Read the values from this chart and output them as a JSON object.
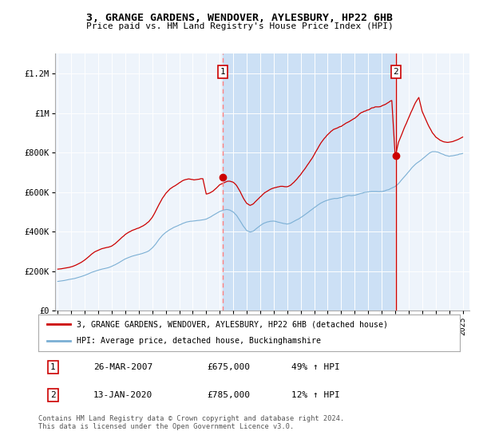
{
  "title": "3, GRANGE GARDENS, WENDOVER, AYLESBURY, HP22 6HB",
  "subtitle": "Price paid vs. HM Land Registry's House Price Index (HPI)",
  "ylim": [
    0,
    1300000
  ],
  "yticks": [
    0,
    200000,
    400000,
    600000,
    800000,
    1000000,
    1200000
  ],
  "ytick_labels": [
    "£0",
    "£200K",
    "£400K",
    "£600K",
    "£800K",
    "£1M",
    "£1.2M"
  ],
  "xlim_start": 1994.8,
  "xlim_end": 2025.5,
  "xtick_years": [
    1995,
    1996,
    1997,
    1998,
    1999,
    2000,
    2001,
    2002,
    2003,
    2004,
    2005,
    2006,
    2007,
    2008,
    2009,
    2010,
    2011,
    2012,
    2013,
    2014,
    2015,
    2016,
    2017,
    2018,
    2019,
    2020,
    2021,
    2022,
    2023,
    2024,
    2025
  ],
  "hpi_color": "#7bafd4",
  "price_color": "#cc0000",
  "dashed_color": "#ff8080",
  "shade_color": "#cce0f5",
  "background_color": "#eef4fb",
  "transaction1": {
    "date": "26-MAR-2007",
    "price": 675000,
    "pct": "49%",
    "label": "1",
    "year": 2007.23
  },
  "transaction2": {
    "date": "13-JAN-2020",
    "price": 785000,
    "pct": "12%",
    "label": "2",
    "year": 2020.04
  },
  "legend_label1": "3, GRANGE GARDENS, WENDOVER, AYLESBURY, HP22 6HB (detached house)",
  "legend_label2": "HPI: Average price, detached house, Buckinghamshire",
  "footer": "Contains HM Land Registry data © Crown copyright and database right 2024.\nThis data is licensed under the Open Government Licence v3.0."
}
